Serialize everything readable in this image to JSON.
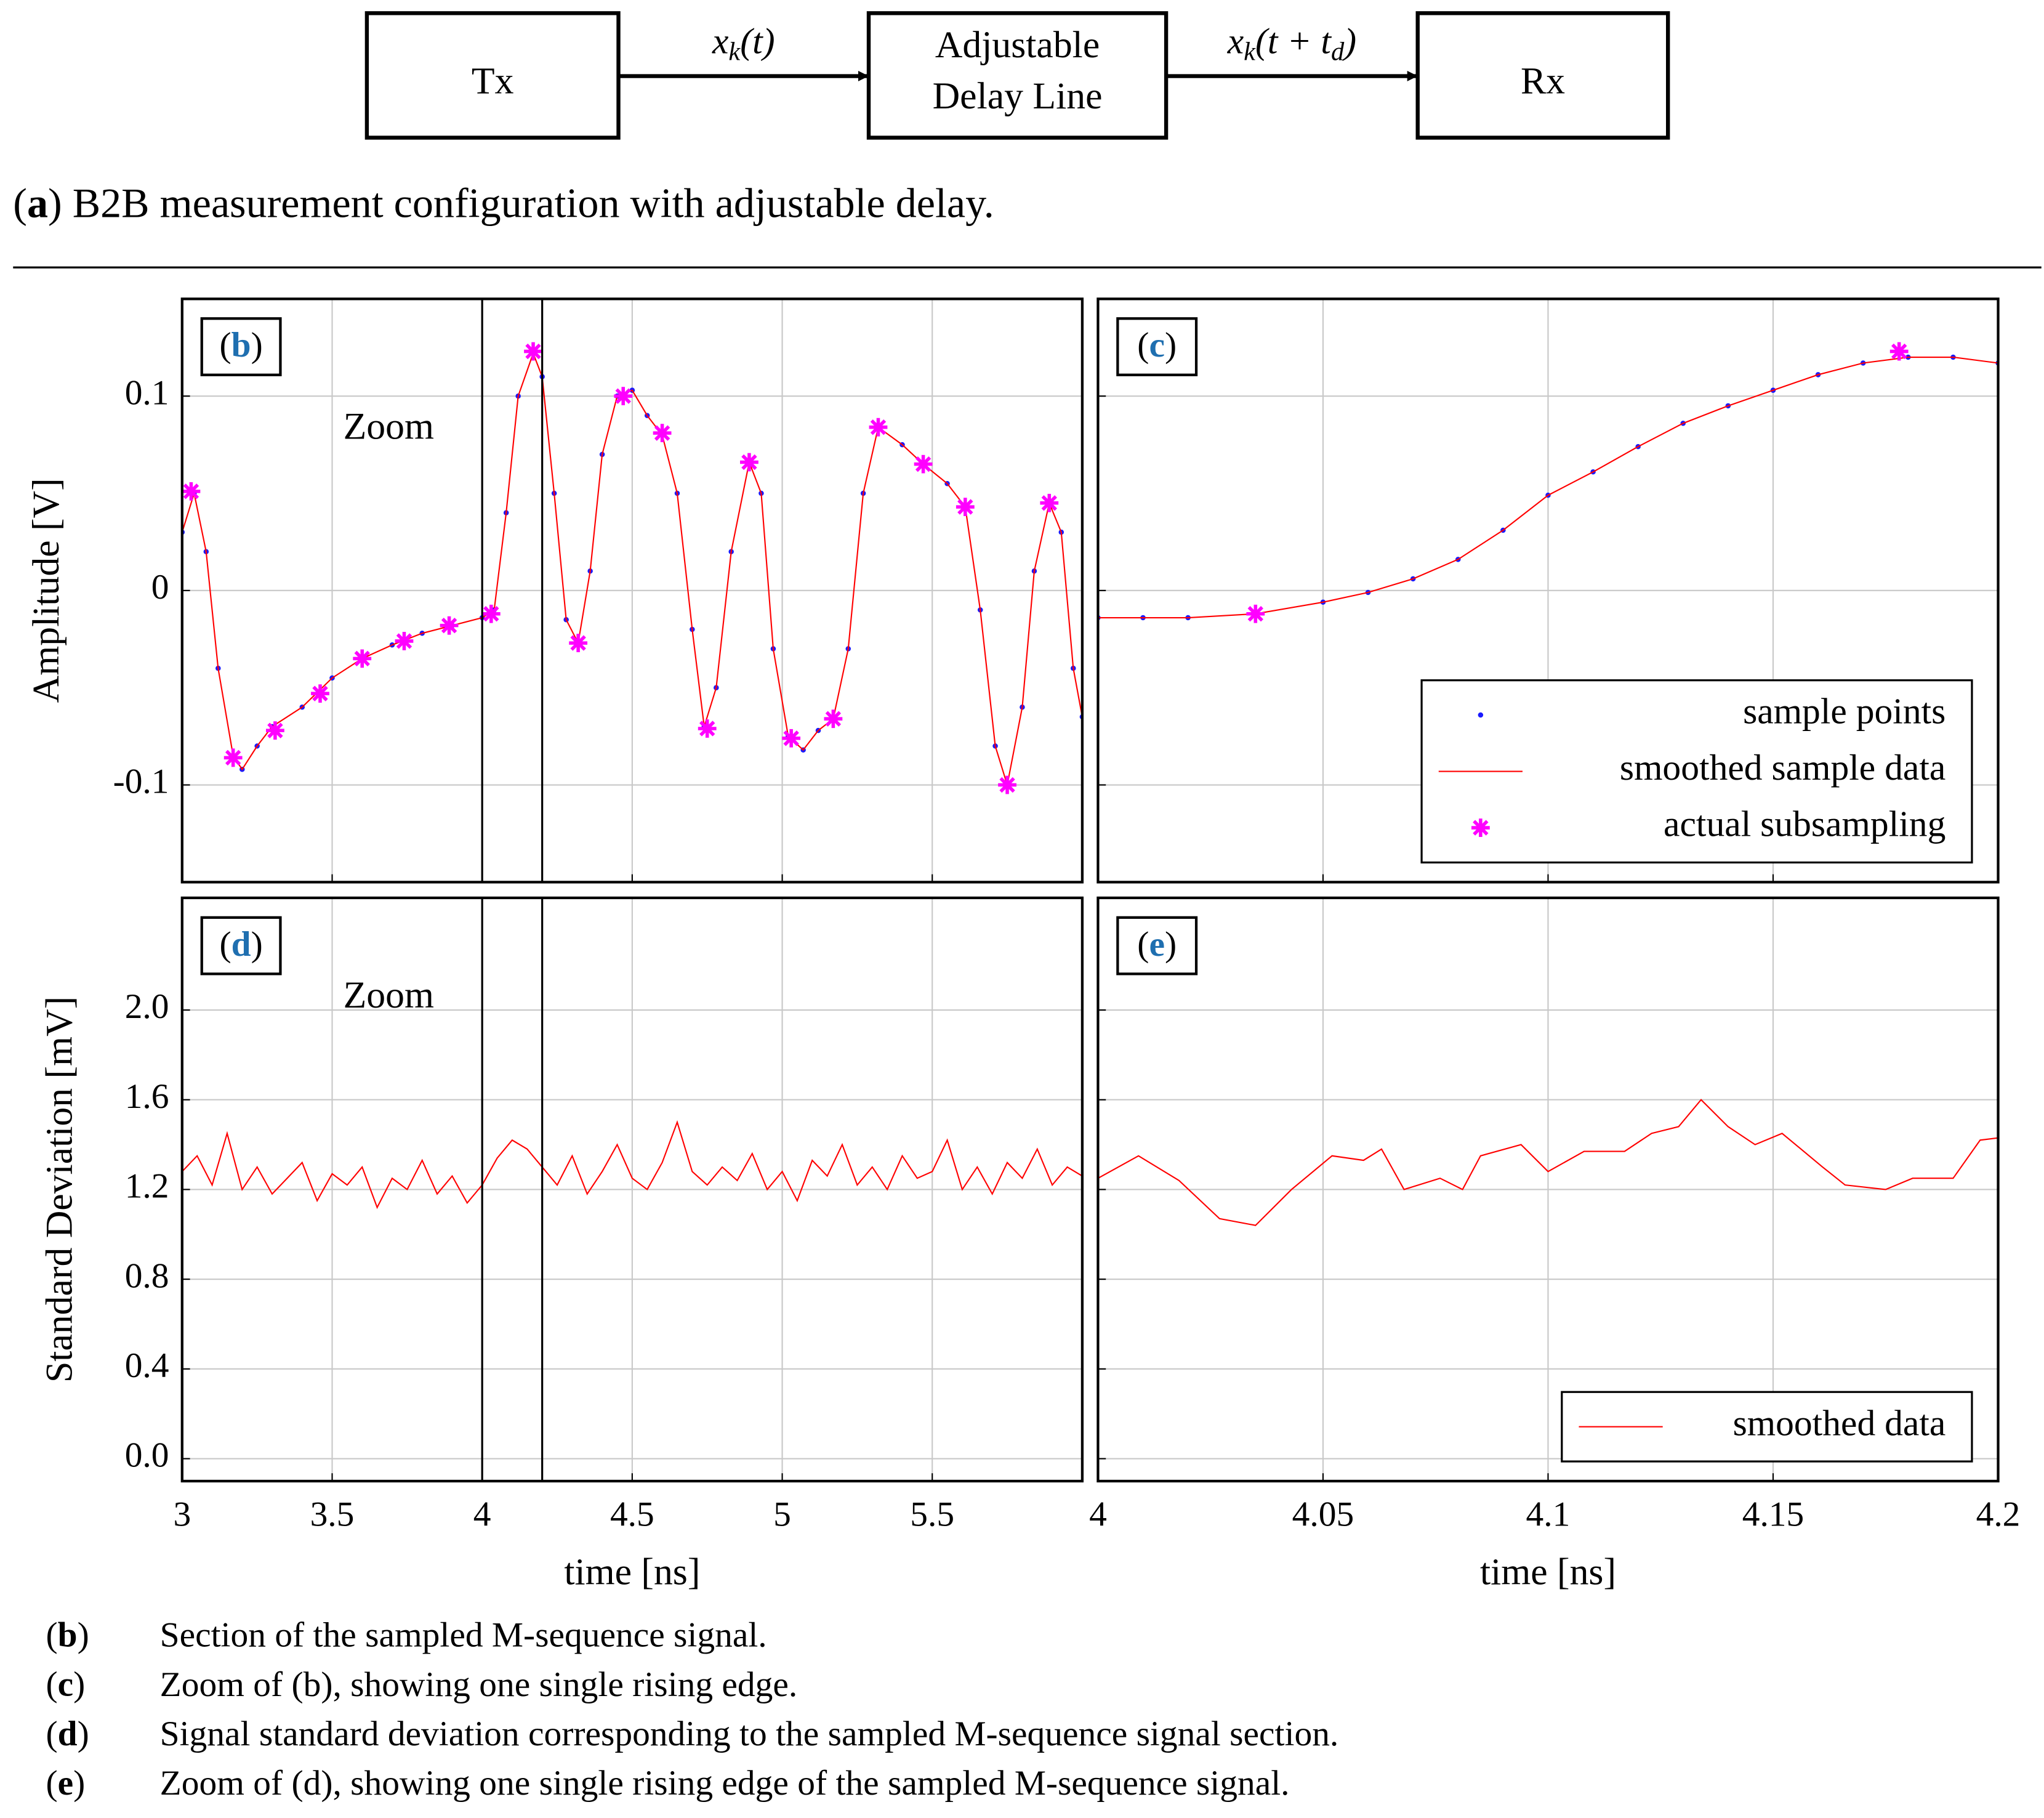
{
  "diagram": {
    "nodes": [
      {
        "lines": [
          "Tx"
        ]
      },
      {
        "lines": [
          "Adjustable",
          "Delay Line"
        ]
      },
      {
        "lines": [
          "Rx"
        ]
      }
    ],
    "edges": [
      {
        "label": [
          "x",
          "k",
          "(t)"
        ]
      },
      {
        "label": [
          "x",
          "k",
          "(t + t",
          "d",
          ")"
        ]
      }
    ]
  },
  "caption_a": {
    "label": [
      "(",
      "a",
      ")"
    ],
    "text": "B2B measurement configuration with adjustable delay."
  },
  "chart_data": [
    {
      "type": "line",
      "panel_label": [
        "(",
        "b",
        ")"
      ],
      "ylabel": "Amplitude [V]",
      "annotation": "Zoom",
      "xlim": [
        3,
        6
      ],
      "ylim": [
        -0.15,
        0.15
      ],
      "xticks": [
        3,
        3.5,
        4,
        4.5,
        5,
        5.5
      ],
      "yticks": [
        -0.1,
        0,
        0.1
      ],
      "xtick_labels": false,
      "ytick_labels": true,
      "grid": true,
      "zoom_lines": [
        4,
        4.2
      ],
      "x": [
        3,
        3.04,
        3.08,
        3.12,
        3.17,
        3.2,
        3.25,
        3.3,
        3.4,
        3.5,
        3.6,
        3.7,
        3.8,
        3.9,
        4.0,
        4.04,
        4.08,
        4.12,
        4.17,
        4.2,
        4.24,
        4.28,
        4.32,
        4.36,
        4.4,
        4.45,
        4.5,
        4.55,
        4.6,
        4.65,
        4.7,
        4.74,
        4.78,
        4.83,
        4.89,
        4.93,
        4.97,
        5.02,
        5.07,
        5.12,
        5.17,
        5.22,
        5.27,
        5.32,
        5.4,
        5.47,
        5.55,
        5.61,
        5.66,
        5.71,
        5.75,
        5.8,
        5.84,
        5.89,
        5.93,
        5.97,
        6.0
      ],
      "series": [
        {
          "name": "sample points",
          "mark": "dot",
          "color": "#1a1aff",
          "values": [
            0.03,
            0.05,
            0.02,
            -0.04,
            -0.085,
            -0.092,
            -0.08,
            -0.07,
            -0.06,
            -0.045,
            -0.035,
            -0.028,
            -0.022,
            -0.018,
            -0.014,
            -0.01,
            0.04,
            0.1,
            0.122,
            0.11,
            0.05,
            -0.015,
            -0.027,
            0.01,
            0.07,
            0.1,
            0.103,
            0.09,
            0.08,
            0.05,
            -0.02,
            -0.07,
            -0.05,
            0.02,
            0.066,
            0.05,
            -0.03,
            -0.075,
            -0.082,
            -0.072,
            -0.066,
            -0.03,
            0.05,
            0.084,
            0.075,
            0.065,
            0.055,
            0.043,
            -0.01,
            -0.08,
            -0.1,
            -0.06,
            0.01,
            0.045,
            0.03,
            -0.04,
            -0.065
          ]
        },
        {
          "name": "smoothed sample data",
          "mark": "line",
          "color": "#ff0000",
          "values": [
            0.03,
            0.05,
            0.02,
            -0.04,
            -0.085,
            -0.092,
            -0.08,
            -0.07,
            -0.06,
            -0.045,
            -0.035,
            -0.028,
            -0.022,
            -0.018,
            -0.014,
            -0.01,
            0.04,
            0.1,
            0.122,
            0.11,
            0.05,
            -0.015,
            -0.027,
            0.01,
            0.07,
            0.1,
            0.103,
            0.09,
            0.08,
            0.05,
            -0.02,
            -0.07,
            -0.05,
            0.02,
            0.066,
            0.05,
            -0.03,
            -0.075,
            -0.082,
            -0.072,
            -0.066,
            -0.03,
            0.05,
            0.084,
            0.075,
            0.065,
            0.055,
            0.043,
            -0.01,
            -0.08,
            -0.1,
            -0.06,
            0.01,
            0.045,
            0.03,
            -0.04,
            -0.065
          ]
        },
        {
          "name": "actual subsampling",
          "mark": "star",
          "color": "#ff00ff",
          "x": [
            3.03,
            3.17,
            3.31,
            3.46,
            3.6,
            3.74,
            3.89,
            4.03,
            4.17,
            4.32,
            4.47,
            4.6,
            4.75,
            4.89,
            5.03,
            5.17,
            5.32,
            5.47,
            5.61,
            5.75,
            5.89
          ],
          "values": [
            0.051,
            -0.086,
            -0.072,
            -0.053,
            -0.035,
            -0.026,
            -0.018,
            -0.012,
            0.123,
            -0.027,
            0.1,
            0.081,
            -0.071,
            0.066,
            -0.076,
            -0.066,
            0.084,
            0.065,
            0.043,
            -0.1,
            0.045
          ]
        }
      ]
    },
    {
      "type": "line",
      "panel_label": [
        "(",
        "c",
        ")"
      ],
      "legend": "lower right",
      "xlim": [
        4,
        4.2
      ],
      "ylim": [
        -0.15,
        0.15
      ],
      "xticks": [
        4,
        4.05,
        4.1,
        4.15,
        4.2
      ],
      "yticks": [
        -0.1,
        0,
        0.1
      ],
      "xtick_labels": false,
      "ytick_labels": false,
      "grid": true,
      "x": [
        4,
        4.01,
        4.02,
        4.035,
        4.05,
        4.06,
        4.07,
        4.08,
        4.09,
        4.1,
        4.11,
        4.12,
        4.13,
        4.14,
        4.15,
        4.16,
        4.17,
        4.18,
        4.19,
        4.2
      ],
      "series": [
        {
          "name": "sample points",
          "mark": "dot",
          "color": "#1a1aff",
          "values": [
            -0.014,
            -0.014,
            -0.014,
            -0.012,
            -0.006,
            -0.001,
            0.006,
            0.016,
            0.031,
            0.049,
            0.061,
            0.074,
            0.086,
            0.095,
            0.103,
            0.111,
            0.117,
            0.12,
            0.12,
            0.117
          ]
        },
        {
          "name": "smoothed sample data",
          "mark": "line",
          "color": "#ff0000",
          "values": [
            -0.014,
            -0.014,
            -0.014,
            -0.012,
            -0.006,
            -0.001,
            0.006,
            0.016,
            0.031,
            0.049,
            0.061,
            0.074,
            0.086,
            0.095,
            0.103,
            0.111,
            0.117,
            0.12,
            0.12,
            0.117
          ]
        },
        {
          "name": "actual subsampling",
          "mark": "star",
          "color": "#ff00ff",
          "x": [
            4.035,
            4.178
          ],
          "values": [
            -0.012,
            0.123
          ]
        }
      ]
    },
    {
      "type": "line",
      "panel_label": [
        "(",
        "d",
        ")"
      ],
      "ylabel": "Standard Deviation [mV]",
      "xlabel": "time [ns]",
      "annotation": "Zoom",
      "xlim": [
        3,
        6
      ],
      "ylim": [
        -0.1,
        2.5
      ],
      "xticks": [
        3,
        3.5,
        4,
        4.5,
        5,
        5.5
      ],
      "yticks": [
        {
          "value": 0,
          "label": "0.0"
        },
        0.4,
        0.8,
        1.2,
        1.6,
        {
          "value": 2,
          "label": "2.0"
        }
      ],
      "xtick_labels": true,
      "ytick_labels": true,
      "grid": true,
      "zoom_lines": [
        4,
        4.2
      ],
      "x": [
        3,
        3.05,
        3.1,
        3.15,
        3.2,
        3.25,
        3.3,
        3.35,
        3.4,
        3.45,
        3.5,
        3.55,
        3.6,
        3.65,
        3.7,
        3.75,
        3.8,
        3.85,
        3.9,
        3.95,
        4,
        4.05,
        4.1,
        4.15,
        4.2,
        4.25,
        4.3,
        4.35,
        4.4,
        4.45,
        4.5,
        4.55,
        4.6,
        4.65,
        4.7,
        4.75,
        4.8,
        4.85,
        4.9,
        4.95,
        5,
        5.05,
        5.1,
        5.15,
        5.2,
        5.25,
        5.3,
        5.35,
        5.4,
        5.45,
        5.5,
        5.55,
        5.6,
        5.65,
        5.7,
        5.75,
        5.8,
        5.85,
        5.9,
        5.95,
        6
      ],
      "series": [
        {
          "name": "smoothed data",
          "mark": "line",
          "color": "#ff0000",
          "values": [
            1.28,
            1.35,
            1.22,
            1.45,
            1.2,
            1.3,
            1.18,
            1.25,
            1.32,
            1.15,
            1.27,
            1.22,
            1.3,
            1.12,
            1.25,
            1.2,
            1.33,
            1.18,
            1.26,
            1.14,
            1.22,
            1.34,
            1.42,
            1.38,
            1.3,
            1.22,
            1.35,
            1.18,
            1.28,
            1.4,
            1.25,
            1.2,
            1.32,
            1.5,
            1.28,
            1.22,
            1.3,
            1.24,
            1.36,
            1.2,
            1.28,
            1.15,
            1.33,
            1.26,
            1.4,
            1.22,
            1.3,
            1.2,
            1.35,
            1.25,
            1.28,
            1.42,
            1.2,
            1.3,
            1.18,
            1.32,
            1.25,
            1.38,
            1.22,
            1.3,
            1.26
          ]
        }
      ]
    },
    {
      "type": "line",
      "panel_label": [
        "(",
        "e",
        ")"
      ],
      "xlabel": "time [ns]",
      "legend": "lower right",
      "xlim": [
        4,
        4.2
      ],
      "ylim": [
        -0.1,
        2.5
      ],
      "xticks": [
        4,
        4.05,
        4.1,
        4.15,
        4.2
      ],
      "yticks": [
        {
          "value": 0,
          "label": "0.0"
        },
        0.4,
        0.8,
        1.2,
        1.6,
        {
          "value": 2,
          "label": "2.0"
        }
      ],
      "xtick_labels": true,
      "ytick_labels": false,
      "grid": true,
      "x": [
        4,
        4.009,
        4.018,
        4.027,
        4.035,
        4.043,
        4.052,
        4.059,
        4.063,
        4.068,
        4.076,
        4.081,
        4.085,
        4.094,
        4.1,
        4.108,
        4.117,
        4.123,
        4.129,
        4.134,
        4.14,
        4.146,
        4.152,
        4.161,
        4.166,
        4.175,
        4.181,
        4.19,
        4.196,
        4.2
      ],
      "series": [
        {
          "name": "smoothed data",
          "mark": "line",
          "color": "#ff0000",
          "values": [
            1.25,
            1.35,
            1.24,
            1.07,
            1.04,
            1.2,
            1.35,
            1.33,
            1.38,
            1.2,
            1.25,
            1.2,
            1.35,
            1.4,
            1.28,
            1.37,
            1.37,
            1.45,
            1.48,
            1.6,
            1.48,
            1.4,
            1.45,
            1.3,
            1.22,
            1.2,
            1.25,
            1.25,
            1.42,
            1.43
          ]
        }
      ]
    }
  ],
  "captions": [
    {
      "label": [
        "(",
        "b",
        ")"
      ],
      "text": "Section of the sampled M-sequence signal."
    },
    {
      "label": [
        "(",
        "c",
        ")"
      ],
      "text": "Zoom of (b), showing one single rising edge."
    },
    {
      "label": [
        "(",
        "d",
        ")"
      ],
      "text": "Signal standard deviation corresponding to the sampled M-sequence signal section."
    },
    {
      "label": [
        "(",
        "e",
        ")"
      ],
      "text": "Zoom of (d), showing one single rising edge of the sampled M-sequence signal."
    }
  ]
}
